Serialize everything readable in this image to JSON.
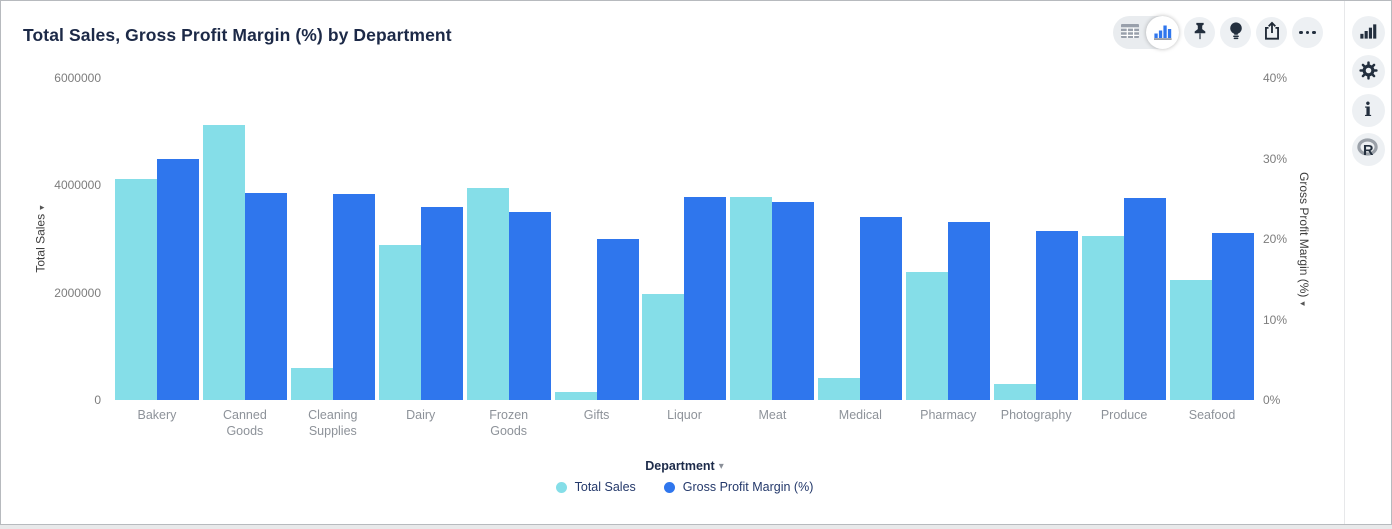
{
  "header": {
    "title": "Total Sales, Gross Profit Margin (%) by Department"
  },
  "toolbar": {
    "view_toggle": [
      {
        "name": "table-view",
        "icon": "table-icon",
        "active": false
      },
      {
        "name": "chart-view",
        "icon": "bar-chart-icon",
        "active": true
      }
    ],
    "buttons": [
      {
        "name": "pin",
        "icon": "pushpin-icon"
      },
      {
        "name": "insights",
        "icon": "lightbulb-icon"
      },
      {
        "name": "export",
        "icon": "share-icon"
      },
      {
        "name": "more-options",
        "icon": "ellipsis-icon"
      }
    ]
  },
  "sidebar": {
    "buttons": [
      {
        "name": "chart-options",
        "icon": "bar-chart-icon"
      },
      {
        "name": "settings",
        "icon": "gear-icon"
      },
      {
        "name": "info",
        "icon": "info-icon"
      },
      {
        "name": "r-script",
        "icon": "r-logo-icon"
      }
    ]
  },
  "colors": {
    "total_sales": "#85DEE8",
    "gross_profit_margin": "#2F76ED",
    "icon_dark": "#232F3E",
    "title_text": "#1C2947",
    "legend_text": "#24396B",
    "axis_tick": "#7D7D7D",
    "category_label": "#8D9299"
  },
  "chart_data": {
    "type": "bar",
    "title": "Total Sales, Gross Profit Margin (%) by Department",
    "xlabel": "Department",
    "grid": false,
    "legend_position": "bottom",
    "categories": [
      "Bakery",
      "Canned Goods",
      "Cleaning Supplies",
      "Dairy",
      "Frozen Goods",
      "Gifts",
      "Liquor",
      "Meat",
      "Medical",
      "Pharmacy",
      "Photography",
      "Produce",
      "Seafood"
    ],
    "series": [
      {
        "name": "Total Sales",
        "axis": "left",
        "color": "#85DEE8",
        "values": [
          4120000,
          5130000,
          600000,
          2890000,
          3950000,
          150000,
          1980000,
          3790000,
          420000,
          2390000,
          300000,
          3050000,
          2230000
        ]
      },
      {
        "name": "Gross Profit Margin (%)",
        "axis": "right",
        "color": "#2F76ED",
        "values": [
          30.0,
          25.7,
          25.6,
          24.0,
          23.4,
          20.0,
          25.2,
          24.6,
          22.7,
          22.1,
          21.0,
          25.1,
          20.7
        ]
      }
    ],
    "left_axis": {
      "label": "Total Sales",
      "min": 0,
      "max": 6000000,
      "ticks": [
        {
          "label": "6000000",
          "value": 6000000
        },
        {
          "label": "4000000",
          "value": 4000000
        },
        {
          "label": "2000000",
          "value": 2000000
        },
        {
          "label": "0",
          "value": 0
        }
      ]
    },
    "right_axis": {
      "label": "Gross Profit Margin (%)",
      "min": 0,
      "max": 40,
      "ticks": [
        {
          "label": "40%",
          "value": 40
        },
        {
          "label": "30%",
          "value": 30
        },
        {
          "label": "20%",
          "value": 20
        },
        {
          "label": "10%",
          "value": 10
        },
        {
          "label": "0%",
          "value": 0
        }
      ]
    }
  }
}
